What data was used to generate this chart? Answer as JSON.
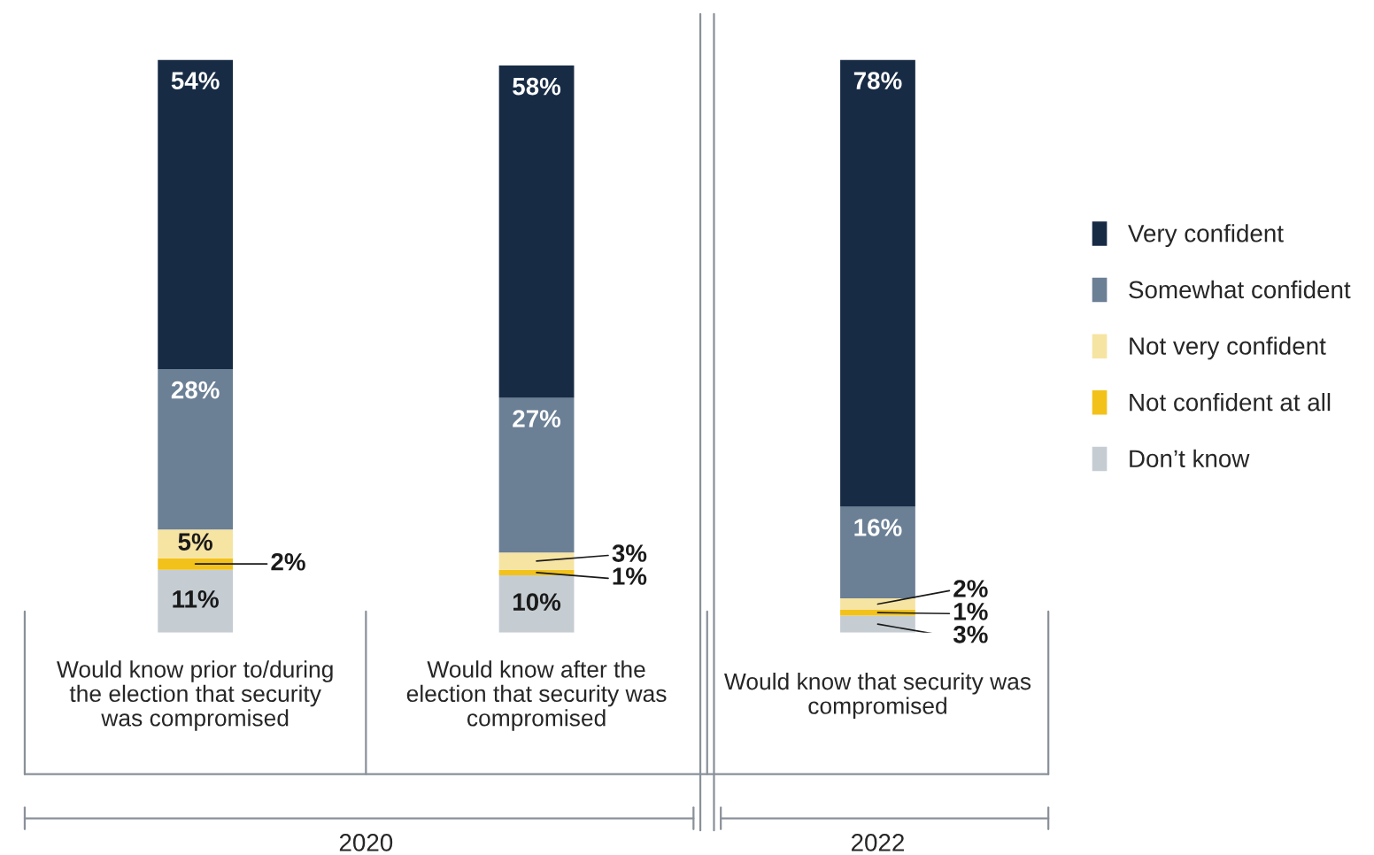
{
  "chart_data": {
    "type": "bar",
    "stacked": true,
    "legend": "right",
    "categories": [
      "Would know prior to/during the election that security was compromised",
      "Would know after the election that security was compromised",
      "Would know that security was compromised"
    ],
    "series": [
      {
        "name": "Don’t know",
        "color": "#c5cdd3",
        "values": [
          11,
          10,
          3
        ],
        "value_labels": [
          "11%",
          "10%",
          "3%"
        ]
      },
      {
        "name": "Not confident at all",
        "color": "#f2c21b",
        "values": [
          2,
          1,
          1
        ],
        "value_labels": [
          "2%",
          "1%",
          "1%"
        ]
      },
      {
        "name": "Not very confident",
        "color": "#f6e4a3",
        "values": [
          5,
          3,
          2
        ],
        "value_labels": [
          "5%",
          "3%",
          "2%"
        ]
      },
      {
        "name": "Somewhat confident",
        "color": "#6b7f95",
        "values": [
          28,
          27,
          16
        ],
        "value_labels": [
          "28%",
          "27%",
          "16%"
        ]
      },
      {
        "name": "Very confident",
        "color": "#172b45",
        "values": [
          54,
          58,
          78
        ],
        "value_labels": [
          "54%",
          "58%",
          "78%"
        ]
      }
    ],
    "annotations": [
      "2020",
      "2022"
    ]
  }
}
